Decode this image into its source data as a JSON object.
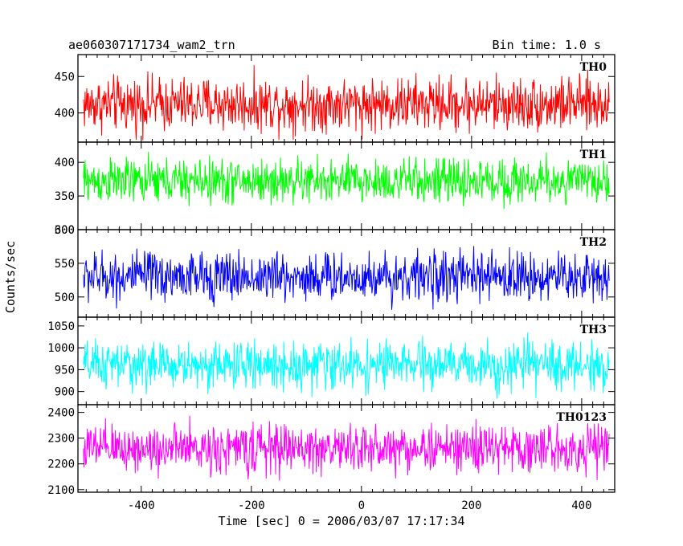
{
  "chart_data": {
    "type": "line",
    "title_left": "ae060307171734_wam2_trn",
    "title_right": "Bin time: 1.0 s",
    "xlabel": "Time [sec] 0 = 2006/03/07 17:17:34",
    "ylabel": "Counts/sec",
    "xlim": [
      -515,
      460
    ],
    "x_range": [
      -505,
      450
    ],
    "bin_time": 1.0,
    "x_ticks": [
      -400,
      -200,
      0,
      200,
      400
    ],
    "grid": false,
    "series": [
      {
        "name": "TH0",
        "color": "#ff0000",
        "ylim": [
          360,
          480
        ],
        "mean": 412,
        "amplitude": 55,
        "y_ticks": [
          400,
          450
        ]
      },
      {
        "name": "TH1",
        "color": "#00ff00",
        "ylim": [
          300,
          430
        ],
        "mean": 372,
        "amplitude": 50,
        "y_ticks": [
          300,
          350,
          400
        ]
      },
      {
        "name": "TH2",
        "color": "#0000ff",
        "ylim": [
          470,
          600
        ],
        "mean": 530,
        "amplitude": 55,
        "y_ticks": [
          500,
          550,
          600
        ]
      },
      {
        "name": "TH3",
        "color": "#00ffff",
        "ylim": [
          870,
          1070
        ],
        "mean": 960,
        "amplitude": 80,
        "y_ticks": [
          900,
          950,
          1000,
          1050
        ]
      },
      {
        "name": "TH0123",
        "color": "#ff00ff",
        "ylim": [
          2090,
          2430
        ],
        "mean": 2260,
        "amplitude": 140,
        "y_ticks": [
          2100,
          2200,
          2300,
          2400
        ]
      }
    ]
  }
}
